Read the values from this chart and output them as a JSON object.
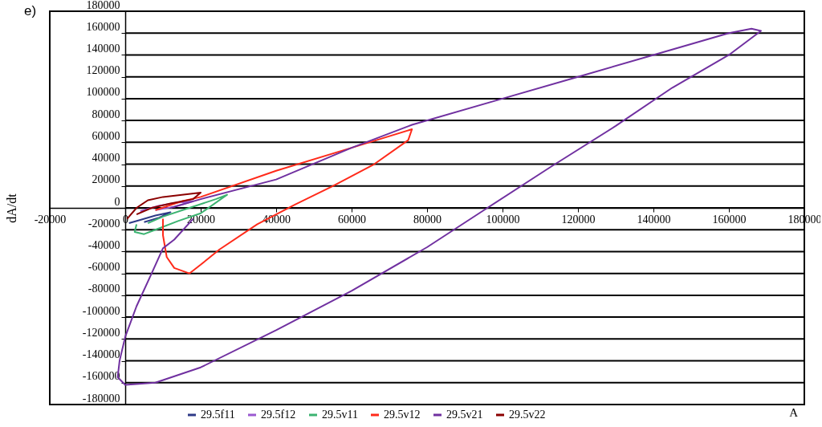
{
  "chart_data": {
    "type": "line",
    "xlabel": "A",
    "ylabel": "dA/dt",
    "annotations": [
      "e)"
    ],
    "xlim": [
      -20000,
      180000
    ],
    "xticks": [
      -20000,
      0,
      20000,
      40000,
      60000,
      80000,
      100000,
      120000,
      140000,
      160000,
      180000
    ],
    "ylim": [
      -180000,
      180000
    ],
    "yticks": [
      -180000,
      -160000,
      -140000,
      -120000,
      -100000,
      -80000,
      -60000,
      -40000,
      -20000,
      0,
      20000,
      40000,
      60000,
      80000,
      100000,
      120000,
      140000,
      160000,
      180000
    ],
    "grid": "y",
    "legend": "bottom",
    "line_style": "solid",
    "series": [
      {
        "name": "29.5f11",
        "color": "#2e3a87",
        "x": [
          1000,
          4000,
          8000,
          12000,
          9000,
          5000
        ],
        "values": [
          -14000,
          -11000,
          -7000,
          -4000,
          -9000,
          -13000
        ]
      },
      {
        "name": "29.5f12",
        "color": "#9b59d0",
        "x": [
          4000,
          9000,
          14000,
          18000,
          13000,
          8000
        ],
        "values": [
          -3000,
          2000,
          5000,
          6000,
          1000,
          -2000
        ]
      },
      {
        "name": "29.5v11",
        "color": "#3cb371",
        "x": [
          3000,
          2500,
          5000,
          8000,
          14000,
          20000,
          27000,
          24000,
          17000,
          10000,
          6000
        ],
        "values": [
          -15000,
          -22000,
          -24000,
          -20000,
          -12000,
          -5000,
          12000,
          8000,
          0,
          -8000,
          -14000
        ]
      },
      {
        "name": "29.5v12",
        "color": "#ff2a1a",
        "x": [
          8000,
          15000,
          20000,
          40000,
          60000,
          76000,
          75000,
          66000,
          55000,
          45000,
          35000,
          25000,
          20000,
          17000,
          13000,
          11000,
          10000,
          10000
        ],
        "values": [
          -2000,
          6000,
          10000,
          34000,
          55000,
          72000,
          62000,
          40000,
          20000,
          3000,
          -15000,
          -38000,
          -52000,
          -60000,
          -55000,
          -45000,
          -25000,
          -10000
        ]
      },
      {
        "name": "29.5v21",
        "color": "#7030a0",
        "x": [
          12000,
          20000,
          40000,
          60000,
          76000,
          100000,
          120000,
          140000,
          160000,
          166000,
          168500,
          160000,
          145000,
          130000,
          113000,
          96000,
          80000,
          60000,
          40000,
          20000,
          8000,
          0,
          -2000,
          -1500,
          0,
          3000,
          7000,
          10000,
          13000,
          18000
        ],
        "values": [
          0,
          8000,
          26000,
          55000,
          76000,
          100000,
          120000,
          140000,
          160000,
          164000,
          162000,
          140000,
          110000,
          75000,
          38000,
          0,
          -36000,
          -76000,
          -112000,
          -146000,
          -160000,
          -162000,
          -155000,
          -140000,
          -118000,
          -90000,
          -60000,
          -37000,
          -29000,
          -10000
        ]
      },
      {
        "name": "29.5v22",
        "color": "#8b0000",
        "x": [
          500,
          3000,
          6000,
          10000,
          15000,
          20000,
          18000,
          12000,
          7000,
          3000
        ],
        "values": [
          -10000,
          0,
          7000,
          10000,
          12000,
          14000,
          8000,
          4000,
          0,
          -6000
        ]
      }
    ]
  }
}
